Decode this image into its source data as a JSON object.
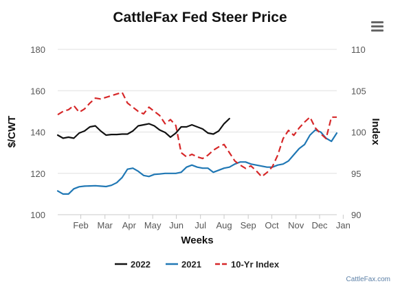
{
  "header": {
    "title": "CattleFax Fed Steer Price"
  },
  "watermark": "CattleFax.com",
  "colors": {
    "s2022": "#111111",
    "s2021": "#1f77b4",
    "index": "#d62728",
    "grid": "#e0e0e0"
  },
  "chart_data": {
    "type": "line",
    "title": "CattleFax Fed Steer Price",
    "xlabel": "Weeks",
    "ylabel": "$/CWT",
    "y2label": "Index",
    "xlim": [
      0,
      52
    ],
    "ylim": [
      100,
      180
    ],
    "y2lim": [
      90,
      110
    ],
    "x_ticks": [
      {
        "label": "Feb",
        "x": 4.3
      },
      {
        "label": "Mar",
        "x": 8.8
      },
      {
        "label": "Apr",
        "x": 13.3
      },
      {
        "label": "May",
        "x": 17.7
      },
      {
        "label": "Jun",
        "x": 22.1
      },
      {
        "label": "Jul",
        "x": 26.6
      },
      {
        "label": "Aug",
        "x": 31.0
      },
      {
        "label": "Sep",
        "x": 35.5
      },
      {
        "label": "Oct",
        "x": 39.9
      },
      {
        "label": "Nov",
        "x": 44.4
      },
      {
        "label": "Dec",
        "x": 48.8
      },
      {
        "label": "Jan",
        "x": 53.2
      }
    ],
    "y_ticks": [
      100,
      120,
      140,
      160,
      180
    ],
    "y2_ticks": [
      90,
      95,
      100,
      105,
      110
    ],
    "grid": true,
    "legend_position": "bottom",
    "series": [
      {
        "name": "2022",
        "axis": "left",
        "color": "#111111",
        "style": "solid",
        "x": [
          0,
          1,
          2,
          3,
          4,
          5,
          6,
          7,
          8,
          9,
          10,
          11,
          12,
          13,
          14,
          15,
          16,
          17,
          18,
          19,
          20,
          21,
          22,
          23,
          24,
          25,
          26,
          27,
          28,
          29,
          30,
          31,
          32,
          33,
          34
        ],
        "values": [
          138.5,
          137,
          137.5,
          137,
          139.5,
          140.5,
          142.5,
          143,
          140.5,
          138.5,
          138.8,
          138.8,
          139,
          139,
          140.5,
          143,
          143.5,
          144,
          143,
          141,
          139.8,
          137.5,
          139.5,
          142.5,
          142.5,
          143.5,
          142.5,
          141.5,
          139.5,
          139,
          140.5,
          144,
          146.5,
          null,
          null
        ]
      },
      {
        "name": "2021",
        "axis": "left",
        "color": "#1f77b4",
        "style": "solid",
        "x": [
          0,
          1,
          2,
          3,
          4,
          5,
          6,
          7,
          8,
          9,
          10,
          11,
          12,
          13,
          14,
          15,
          16,
          17,
          18,
          19,
          20,
          21,
          22,
          23,
          24,
          25,
          26,
          27,
          28,
          29,
          30,
          31,
          32,
          33,
          34,
          35,
          36,
          37,
          38,
          39,
          40,
          41,
          42,
          43,
          44,
          45,
          46,
          47,
          48,
          49,
          50,
          51,
          52
        ],
        "values": [
          111.5,
          110,
          110,
          112.5,
          113.5,
          113.8,
          113.9,
          114,
          113.8,
          113.6,
          114.2,
          115.5,
          118,
          122,
          122.5,
          121,
          119,
          118.5,
          119.5,
          119.7,
          120,
          120,
          120,
          120.5,
          123,
          124,
          123,
          122.5,
          122.5,
          120.5,
          121.5,
          122.5,
          123,
          124.5,
          125.5,
          125.5,
          124.5,
          124,
          123.5,
          123,
          123,
          124,
          124.5,
          126,
          129,
          132,
          134,
          138.5,
          141,
          140,
          137,
          135.5,
          139.5
        ]
      },
      {
        "name": "10-Yr Index",
        "axis": "right",
        "color": "#d62728",
        "style": "dashed",
        "x": [
          0,
          1,
          2,
          3,
          4,
          5,
          6,
          7,
          8,
          9,
          10,
          11,
          12,
          13,
          14,
          15,
          16,
          17,
          18,
          19,
          20,
          21,
          22,
          23,
          24,
          25,
          26,
          27,
          28,
          29,
          30,
          31,
          32,
          33,
          34,
          35,
          36,
          37,
          38,
          39,
          40,
          41,
          42,
          43,
          44,
          45,
          46,
          47,
          48,
          49,
          50,
          51,
          52
        ],
        "values": [
          102.1,
          102.5,
          102.7,
          103.2,
          102.4,
          102.8,
          103.5,
          104.1,
          104.0,
          104.2,
          104.4,
          104.6,
          104.8,
          103.5,
          103.0,
          102.5,
          102.2,
          103.0,
          102.5,
          102.0,
          101.0,
          101.5,
          100.8,
          97.5,
          97.0,
          97.3,
          97.0,
          96.8,
          97.2,
          97.8,
          98.2,
          98.5,
          97.5,
          96.5,
          96.0,
          95.6,
          95.9,
          95.3,
          94.6,
          95.1,
          95.8,
          97.2,
          99.2,
          100.2,
          99.6,
          100.5,
          101.2,
          101.8,
          100.5,
          99.8,
          99.2,
          101.8,
          101.8
        ]
      }
    ]
  }
}
